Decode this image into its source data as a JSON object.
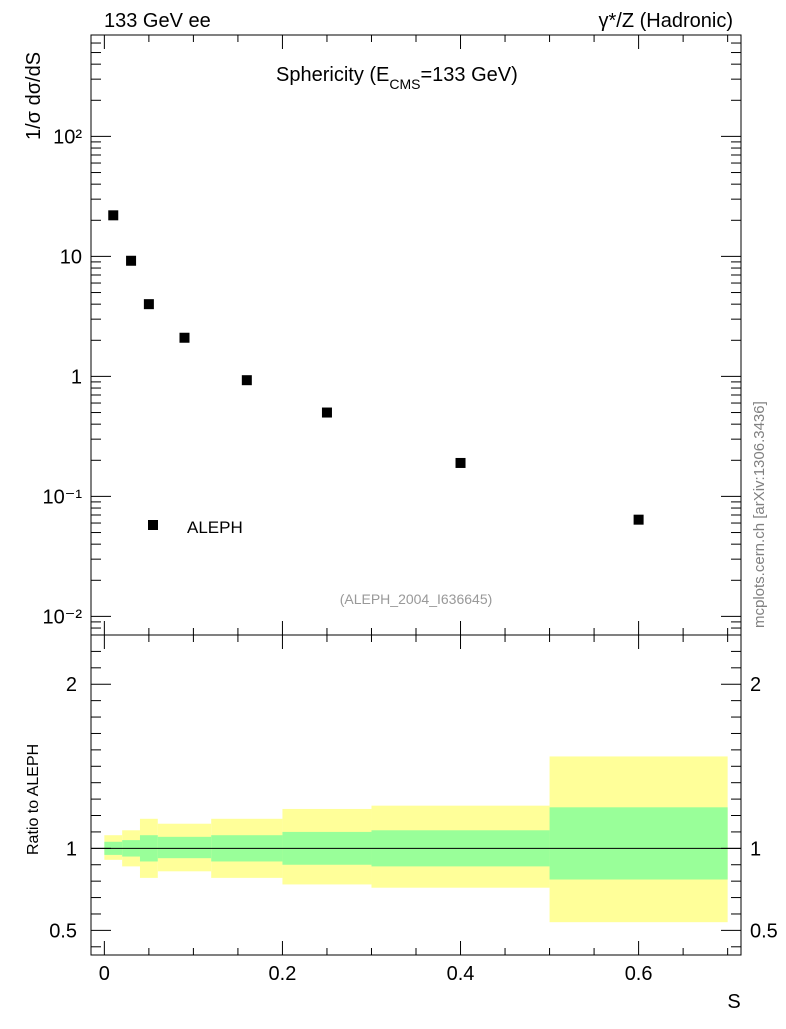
{
  "header": {
    "left": "133 GeV ee",
    "right": "γ*/Z (Hadronic)"
  },
  "watermark": "mcplots.cern.ch [arXiv:1306.3436]",
  "chart_data": [
    {
      "type": "scatter",
      "title": "Sphericity (E",
      "title_sub": "CMS",
      "title_tail": "=133 GeV)",
      "ylabel": "1/σ  dσ/dS",
      "yscale": "log",
      "ylim": [
        0.007,
        700
      ],
      "xlim": [
        -0.015,
        0.715
      ],
      "analysis_label": "(ALEPH_2004_I636645)",
      "y_tick_labels": [
        "10⁻²",
        "10⁻¹",
        "1",
        "10",
        "10²"
      ],
      "series": [
        {
          "name": "ALEPH",
          "color": "#000000",
          "marker": "square",
          "x": [
            0.01,
            0.03,
            0.05,
            0.09,
            0.16,
            0.25,
            0.4,
            0.6
          ],
          "y": [
            22,
            9.2,
            4.0,
            2.1,
            0.93,
            0.5,
            0.19,
            0.064
          ]
        }
      ]
    },
    {
      "type": "area",
      "ylabel": "Ratio to ALEPH",
      "xlabel": "S",
      "ylim": [
        0.35,
        2.3
      ],
      "xlim": [
        -0.015,
        0.715
      ],
      "x_tick_labels": [
        "0",
        "0.2",
        "0.4",
        "0.6"
      ],
      "y_tick_labels": [
        "0.5",
        "1",
        "2"
      ],
      "reference_line": 1,
      "bands": {
        "bin_edges": [
          0.0,
          0.02,
          0.04,
          0.06,
          0.12,
          0.2,
          0.3,
          0.5,
          0.7
        ],
        "outer": {
          "color": "#ffff99",
          "lo": [
            0.93,
            0.89,
            0.82,
            0.86,
            0.82,
            0.78,
            0.76,
            0.55
          ],
          "hi": [
            1.08,
            1.11,
            1.18,
            1.15,
            1.18,
            1.24,
            1.26,
            1.56
          ]
        },
        "inner": {
          "color": "#99ff99",
          "lo": [
            0.96,
            0.95,
            0.92,
            0.94,
            0.92,
            0.9,
            0.89,
            0.81
          ],
          "hi": [
            1.04,
            1.05,
            1.08,
            1.07,
            1.08,
            1.1,
            1.11,
            1.25
          ]
        }
      }
    }
  ]
}
